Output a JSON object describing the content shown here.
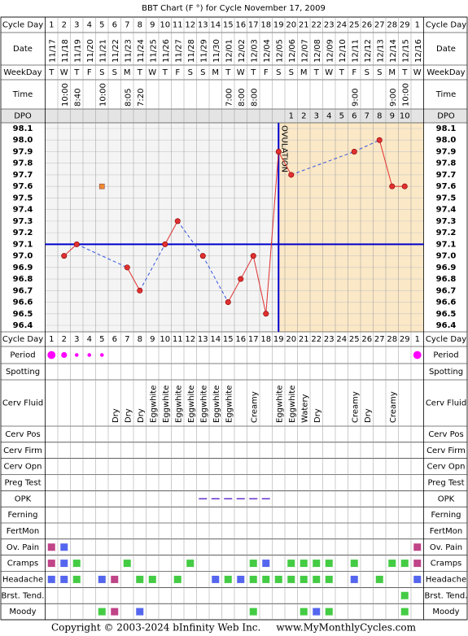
{
  "title": "BBT Chart (F °) for Cycle November 17, 2009",
  "labels": {
    "cycle_day": "Cycle Day",
    "date": "Date",
    "weekday": "WeekDay",
    "time": "Time",
    "dpo": "DPO",
    "period": "Period",
    "spotting": "Spotting",
    "cerv_fluid": "Cerv Fluid",
    "cerv_pos": "Cerv Pos",
    "cerv_firm": "Cerv Firm",
    "cerv_opn": "Cerv Opn",
    "preg_test": "Preg Test",
    "opk": "OPK",
    "ferning": "Ferning",
    "fertmon": "FertMon",
    "ov_pain": "Ov. Pain",
    "cramps": "Cramps",
    "headache": "Headache",
    "brst_tend": "Brst. Tend.",
    "moody": "Moody"
  },
  "cycle_days": [
    1,
    2,
    3,
    4,
    5,
    6,
    7,
    8,
    9,
    10,
    11,
    12,
    13,
    14,
    15,
    16,
    17,
    18,
    19,
    20,
    21,
    22,
    23,
    24,
    25,
    26,
    27,
    28,
    29,
    1
  ],
  "dates": [
    "11/17",
    "11/18",
    "11/19",
    "11/20",
    "11/21",
    "11/22",
    "11/23",
    "11/24",
    "11/25",
    "11/26",
    "11/27",
    "11/28",
    "11/29",
    "11/30",
    "12/01",
    "12/02",
    "12/03",
    "12/04",
    "12/05",
    "12/06",
    "12/07",
    "12/08",
    "12/09",
    "12/10",
    "12/11",
    "12/12",
    "12/13",
    "12/14",
    "12/15",
    "12/16"
  ],
  "weekdays": [
    "T",
    "W",
    "T",
    "F",
    "S",
    "S",
    "M",
    "T",
    "W",
    "T",
    "F",
    "S",
    "S",
    "M",
    "T",
    "W",
    "T",
    "F",
    "S",
    "S",
    "M",
    "T",
    "W",
    "T",
    "F",
    "S",
    "S",
    "M",
    "T",
    "W"
  ],
  "times": [
    null,
    "10:00",
    "8:40",
    null,
    "10:00",
    null,
    "8:05",
    "7:20",
    null,
    null,
    null,
    null,
    null,
    null,
    "7:00",
    "8:00",
    "8:00",
    null,
    null,
    null,
    null,
    null,
    null,
    null,
    "9:00",
    null,
    null,
    "9:00",
    "10:00",
    null
  ],
  "dpo": [
    null,
    null,
    null,
    null,
    null,
    null,
    null,
    null,
    null,
    null,
    null,
    null,
    null,
    null,
    null,
    null,
    null,
    null,
    null,
    1,
    2,
    3,
    4,
    5,
    6,
    7,
    8,
    9,
    10,
    null
  ],
  "chart_data": {
    "type": "line",
    "values": [
      null,
      97.0,
      97.1,
      null,
      null,
      null,
      96.9,
      96.7,
      null,
      97.1,
      97.3,
      null,
      97.0,
      null,
      96.6,
      96.8,
      97.0,
      96.5,
      97.9,
      97.7,
      null,
      null,
      null,
      null,
      97.9,
      null,
      98.0,
      97.6,
      97.6,
      null
    ],
    "color": "#e03030",
    "gap_color": "#3355dd",
    "excluded": [
      null,
      null,
      null,
      null,
      97.6,
      null,
      null,
      null,
      null,
      null,
      null,
      null,
      null,
      null,
      null,
      null,
      null,
      null,
      null,
      null,
      null,
      null,
      null,
      null,
      null,
      null,
      null,
      null,
      null,
      null
    ],
    "excluded_color": "#f08a30",
    "ylim": [
      96.4,
      98.1
    ],
    "yticks": [
      98.1,
      {
        "value": 98,
        "label": "98.0"
      },
      97.9,
      97.8,
      97.7,
      97.6,
      97.5,
      97.4,
      97.3,
      97.2,
      97.1,
      {
        "value": 97,
        "label": "97.0"
      },
      96.9,
      96.8,
      96.7,
      96.6,
      96.5,
      96.4
    ],
    "coverline": 97.1,
    "coverline_color": "#0000cc",
    "ovulation_label": "OVULATION",
    "grid": true
  },
  "period": [
    3,
    2,
    1,
    1,
    1,
    null,
    null,
    null,
    null,
    null,
    null,
    null,
    null,
    null,
    null,
    null,
    null,
    null,
    null,
    null,
    null,
    null,
    null,
    null,
    null,
    null,
    null,
    null,
    null,
    3
  ],
  "period_color": "#ff00ff",
  "cerv_fluid": [
    null,
    null,
    null,
    null,
    null,
    "Dry",
    "Dry",
    "Dry",
    "Eggwhite",
    "Eggwhite",
    "Eggwhite",
    "Eggwhite",
    "Eggwhite",
    "Eggwhite",
    "Eggwhite",
    null,
    "Creamy",
    null,
    "Eggwhite",
    "Eggwhite",
    "Watery",
    "Dry",
    null,
    null,
    "Creamy",
    "Dry",
    null,
    "Creamy",
    null,
    null
  ],
  "opk": [
    null,
    null,
    null,
    null,
    null,
    null,
    null,
    null,
    null,
    null,
    null,
    null,
    0,
    0,
    0,
    0,
    0,
    0,
    null,
    null,
    null,
    null,
    null,
    null,
    null,
    null,
    null,
    null,
    null,
    null
  ],
  "opk_color": "#6633cc",
  "ov_pain": [
    "#c04488",
    "#5566ee",
    null,
    null,
    null,
    null,
    null,
    null,
    null,
    null,
    null,
    null,
    null,
    null,
    null,
    null,
    null,
    null,
    null,
    null,
    null,
    null,
    null,
    null,
    null,
    null,
    null,
    null,
    null,
    "#c04488"
  ],
  "cramps": [
    "#c04488",
    "#5566ee",
    "#44cc44",
    null,
    null,
    null,
    "#44cc44",
    null,
    null,
    null,
    null,
    "#44cc44",
    null,
    null,
    null,
    null,
    "#44cc44",
    "#5566ee",
    null,
    "#44cc44",
    "#44cc44",
    "#44cc44",
    "#44cc44",
    null,
    "#44cc44",
    null,
    null,
    "#44cc44",
    "#44cc44",
    "#c04488"
  ],
  "headache": [
    "#5566ee",
    "#5566ee",
    "#44cc44",
    null,
    "#5566ee",
    "#c04488",
    null,
    "#44cc44",
    "#44cc44",
    null,
    "#44cc44",
    null,
    null,
    "#5566ee",
    "#44cc44",
    "#5566ee",
    "#44cc44",
    "#44cc44",
    "#44cc44",
    "#44cc44",
    "#44cc44",
    "#44cc44",
    "#44cc44",
    null,
    "#5566ee",
    null,
    "#44cc44",
    null,
    null,
    "#5566ee"
  ],
  "brst_tend": [
    null,
    null,
    null,
    null,
    null,
    null,
    null,
    null,
    null,
    null,
    null,
    null,
    null,
    null,
    null,
    null,
    null,
    null,
    null,
    null,
    null,
    null,
    null,
    null,
    null,
    null,
    null,
    null,
    "#44cc44",
    null
  ],
  "moody": [
    null,
    null,
    null,
    null,
    "#44cc44",
    "#c04488",
    null,
    "#5566ee",
    null,
    null,
    null,
    null,
    null,
    null,
    null,
    null,
    "#44cc44",
    null,
    null,
    null,
    "#44cc44",
    "#5566ee",
    "#44cc44",
    null,
    null,
    null,
    null,
    null,
    "#44cc44",
    null
  ],
  "footer": "Copyright © 2003-2024 bInfinity Web Inc.     www.MyMonthlyCycles.com"
}
